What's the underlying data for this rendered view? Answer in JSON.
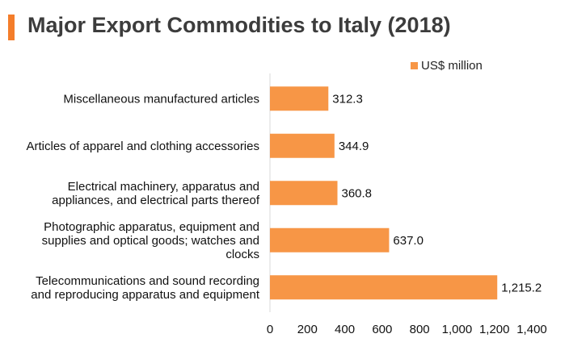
{
  "title": "Major Export Commodities to Italy (2018)",
  "colors": {
    "bar": "#f79646",
    "accent": "#f47d2a",
    "axis": "#d9d9d9"
  },
  "chart_data": {
    "type": "bar",
    "orientation": "horizontal",
    "title": "Major Export Commodities to Italy (2018)",
    "legend": {
      "position": "top-right"
    },
    "categories": [
      [
        "Miscellaneous manufactured articles"
      ],
      [
        "Articles of apparel and clothing accessories"
      ],
      [
        "Electrical machinery, apparatus and",
        "appliances, and electrical parts thereof"
      ],
      [
        "Photographic apparatus, equipment and",
        "supplies and optical goods; watches and",
        "clocks"
      ],
      [
        "Telecommunications and sound recording",
        "and reproducing apparatus and equipment"
      ]
    ],
    "series": [
      {
        "name": "US$ million",
        "values": [
          312.3,
          344.9,
          360.8,
          637.0,
          1215.2
        ],
        "value_labels": [
          "312.3",
          "344.9",
          "360.8",
          "637.0",
          "1,215.2"
        ]
      }
    ],
    "xlim": [
      0,
      1400
    ],
    "xticks": [
      0,
      200,
      400,
      600,
      800,
      1000,
      1200,
      1400
    ],
    "xtick_labels": [
      "0",
      "200",
      "400",
      "600",
      "800",
      "1,000",
      "1,200",
      "1,400"
    ],
    "grid": false
  }
}
